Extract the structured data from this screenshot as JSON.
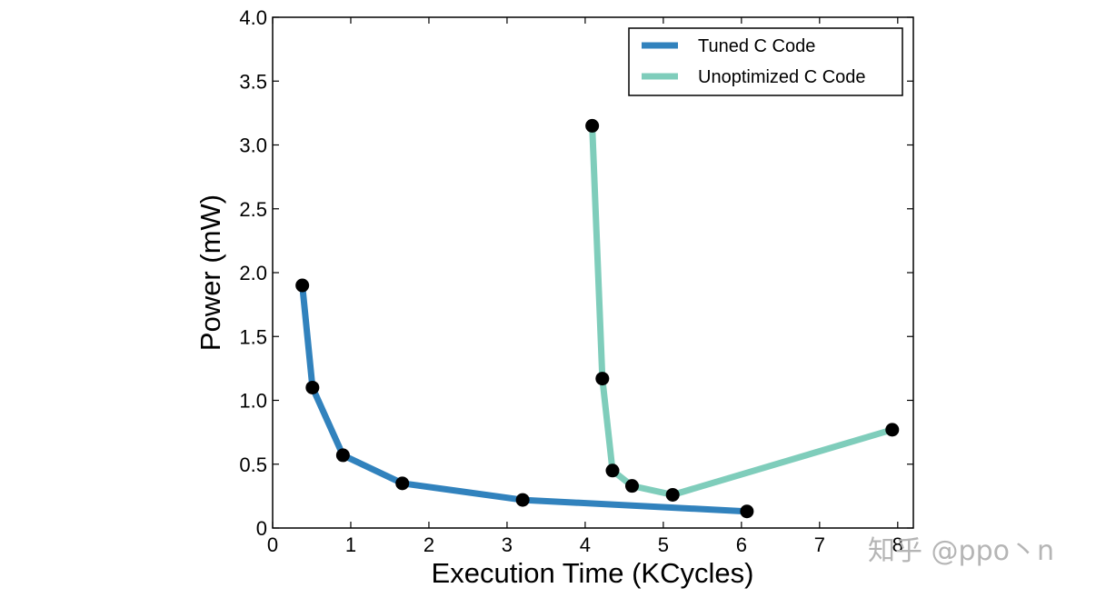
{
  "chart_data": {
    "type": "line",
    "title": "",
    "xlabel": "Execution Time (KCycles)",
    "ylabel": "Power (mW)",
    "xlim": [
      0,
      8.2
    ],
    "ylim": [
      0,
      4.0
    ],
    "xticks": [
      0,
      1,
      2,
      3,
      4,
      5,
      6,
      7,
      8
    ],
    "xtick_labels": [
      "0",
      "1",
      "2",
      "3",
      "4",
      "5",
      "6",
      "7",
      "8"
    ],
    "yticks": [
      0,
      0.5,
      1.0,
      1.5,
      2.0,
      2.5,
      3.0,
      3.5,
      4.0
    ],
    "ytick_labels": [
      "0",
      "0.5",
      "1.0",
      "1.5",
      "2.0",
      "2.5",
      "3.0",
      "3.5",
      "4.0"
    ],
    "grid": false,
    "legend_position": "top-right",
    "marker_color": "#000000",
    "series": [
      {
        "name": "Tuned C Code",
        "color": "#3182bd",
        "x": [
          0.38,
          0.51,
          0.9,
          1.66,
          3.2,
          6.07
        ],
        "y": [
          1.9,
          1.1,
          0.57,
          0.35,
          0.22,
          0.13
        ]
      },
      {
        "name": "Unoptimized C Code",
        "color": "#7fcdbb",
        "x": [
          4.09,
          4.22,
          4.35,
          4.6,
          5.12,
          7.93
        ],
        "y": [
          3.15,
          1.17,
          0.45,
          0.33,
          0.26,
          0.77
        ]
      }
    ]
  },
  "watermark": "知乎 @ppo丶n"
}
